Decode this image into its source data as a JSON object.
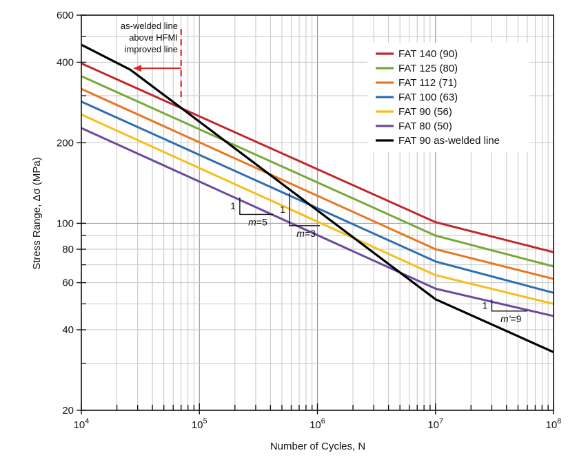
{
  "chart_data": {
    "type": "line",
    "x_scale": "log",
    "y_scale": "log",
    "xlim": [
      10000,
      100000000
    ],
    "ylim": [
      20,
      600
    ],
    "xlabel": "Number of Cycles, N",
    "ylabel": "Stress Range, Δσ (MPa)",
    "x_ticks": [
      {
        "value": 10000,
        "base": "10",
        "exp": "4"
      },
      {
        "value": 100000,
        "base": "10",
        "exp": "5"
      },
      {
        "value": 1000000,
        "base": "10",
        "exp": "6"
      },
      {
        "value": 10000000,
        "base": "10",
        "exp": "7"
      },
      {
        "value": 100000000,
        "base": "10",
        "exp": "8"
      }
    ],
    "y_ticks": [
      {
        "value": 20,
        "label": "20"
      },
      {
        "value": 40,
        "label": "40"
      },
      {
        "value": 60,
        "label": "60"
      },
      {
        "value": 80,
        "label": "80"
      },
      {
        "value": 100,
        "label": "100"
      },
      {
        "value": 200,
        "label": "200"
      },
      {
        "value": 400,
        "label": "400"
      },
      {
        "value": 600,
        "label": "600"
      }
    ],
    "grid": true,
    "legend_position": "top-right",
    "series": [
      {
        "name": "FAT 140 (90)",
        "color": "#c0272d",
        "x": [
          10000,
          10000000,
          100000000
        ],
        "y": [
          396,
          101,
          78
        ]
      },
      {
        "name": "FAT 125 (80)",
        "color": "#77a83a",
        "x": [
          10000,
          10000000,
          100000000
        ],
        "y": [
          355,
          90,
          69
        ]
      },
      {
        "name": "FAT 112 (71)",
        "color": "#e87722",
        "x": [
          10000,
          10000000,
          100000000
        ],
        "y": [
          318,
          80,
          62
        ]
      },
      {
        "name": "FAT 100 (63)",
        "color": "#2f6fb0",
        "x": [
          10000,
          10000000,
          100000000
        ],
        "y": [
          285,
          72,
          55
        ]
      },
      {
        "name": "FAT 90 (56)",
        "color": "#f6be1a",
        "x": [
          10000,
          10000000,
          100000000
        ],
        "y": [
          255,
          64,
          50
        ]
      },
      {
        "name": "FAT 80 (50)",
        "color": "#6b4a9e",
        "x": [
          10000,
          10000000,
          100000000
        ],
        "y": [
          227,
          57,
          45
        ]
      },
      {
        "name": "FAT 90 as-welded line",
        "color": "#000000",
        "x": [
          10000,
          26000,
          10000000,
          100000000
        ],
        "y": [
          465,
          375,
          52,
          33
        ]
      }
    ],
    "annotations": {
      "as_welded_note": [
        "as-welded line",
        "above HFMI",
        "improved line"
      ],
      "dashed_line_x": 70000,
      "arrow_from_x": 70000,
      "arrow_to_x": 26000,
      "arrow_y": 380,
      "annotation_color": "#e02a2a",
      "slope_m5": {
        "one": "1",
        "m_label": "m",
        "eq": "=5",
        "x1": 220000,
        "x2": 420000,
        "y1": 125,
        "y2": 108
      },
      "slope_m3": {
        "one": "1",
        "m_label": "m",
        "eq": "=3",
        "x1": 580000,
        "x2": 1050000,
        "y1": 130,
        "y2": 98
      },
      "slope_m9": {
        "one": "1",
        "m_label": "m'",
        "eq": "=9",
        "x1": 30000000,
        "x2": 60000000,
        "y1": 52,
        "y2": 47
      }
    }
  }
}
